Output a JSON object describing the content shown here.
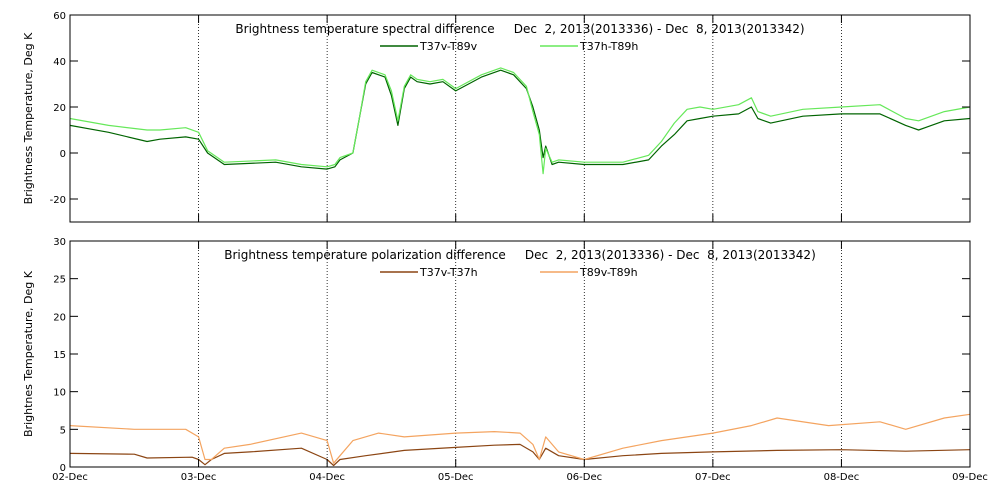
{
  "x_axis": {
    "tick_labels": [
      "02-Dec",
      "03-Dec",
      "04-Dec",
      "05-Dec",
      "06-Dec",
      "07-Dec",
      "08-Dec",
      "09-Dec"
    ],
    "tick_days": [
      0,
      1,
      2,
      3,
      4,
      5,
      6,
      7
    ]
  },
  "chart_data": [
    {
      "type": "line",
      "title": "Brightness temperature spectral difference     Dec  2, 2013(2013336) - Dec  8, 2013(2013342)",
      "ylabel": "Brightness Temperature, Deg K",
      "xlabel": "",
      "x_unit": "days since 02-Dec 2013",
      "ylim": [
        -30,
        60
      ],
      "yticks": [
        -20,
        0,
        20,
        40,
        60
      ],
      "grid": true,
      "legend_position": "top-center",
      "series": [
        {
          "name": "T37v-T89v",
          "color": "#006400",
          "x": [
            0,
            0.3,
            0.6,
            0.7,
            0.9,
            1.0,
            1.07,
            1.2,
            1.6,
            1.8,
            2.0,
            2.06,
            2.1,
            2.2,
            2.25,
            2.3,
            2.35,
            2.45,
            2.5,
            2.55,
            2.6,
            2.65,
            2.7,
            2.8,
            2.9,
            3.0,
            3.2,
            3.35,
            3.45,
            3.55,
            3.6,
            3.65,
            3.68,
            3.7,
            3.75,
            3.8,
            4.0,
            4.3,
            4.5,
            4.6,
            4.7,
            4.8,
            4.9,
            5.0,
            5.2,
            5.3,
            5.35,
            5.45,
            5.7,
            6.0,
            6.3,
            6.5,
            6.6,
            6.8,
            7.0
          ],
          "values": [
            12,
            9,
            5,
            6,
            7,
            6,
            0,
            -5,
            -4,
            -6,
            -7,
            -6,
            -3,
            0,
            15,
            30,
            35,
            33,
            25,
            12,
            28,
            33,
            31,
            30,
            31,
            27,
            33,
            36,
            34,
            28,
            20,
            10,
            -2,
            3,
            -5,
            -4,
            -5,
            -5,
            -3,
            3,
            8,
            14,
            15,
            16,
            17,
            20,
            15,
            13,
            16,
            17,
            17,
            12,
            10,
            14,
            15
          ]
        },
        {
          "name": "T37h-T89h",
          "color": "#66e85a",
          "x": [
            0,
            0.3,
            0.6,
            0.7,
            0.9,
            1.0,
            1.07,
            1.2,
            1.6,
            1.8,
            2.0,
            2.06,
            2.1,
            2.2,
            2.25,
            2.3,
            2.35,
            2.45,
            2.5,
            2.55,
            2.6,
            2.65,
            2.7,
            2.8,
            2.9,
            3.0,
            3.2,
            3.35,
            3.45,
            3.55,
            3.6,
            3.65,
            3.68,
            3.7,
            3.75,
            3.8,
            4.0,
            4.3,
            4.5,
            4.6,
            4.7,
            4.8,
            4.9,
            5.0,
            5.2,
            5.3,
            5.35,
            5.45,
            5.7,
            6.0,
            6.3,
            6.5,
            6.6,
            6.8,
            7.0
          ],
          "values": [
            15,
            12,
            10,
            10,
            11,
            9,
            1,
            -4,
            -3,
            -5,
            -6,
            -5,
            -2,
            0,
            15,
            31,
            36,
            34,
            27,
            14,
            29,
            34,
            32,
            31,
            32,
            28,
            34,
            37,
            35,
            29,
            18,
            8,
            -9,
            2,
            -4,
            -3,
            -4,
            -4,
            -1,
            5,
            13,
            19,
            20,
            19,
            21,
            24,
            18,
            16,
            19,
            20,
            21,
            15,
            14,
            18,
            20
          ]
        }
      ]
    },
    {
      "type": "line",
      "title": "Brightness temperature polarization difference     Dec  2, 2013(2013336) - Dec  8, 2013(2013342)",
      "ylabel": "Brightnes Temperature, Deg K",
      "xlabel": "",
      "x_unit": "days since 02-Dec 2013",
      "ylim": [
        0,
        30
      ],
      "yticks": [
        0,
        5,
        10,
        15,
        20,
        25,
        30
      ],
      "grid": true,
      "legend_position": "top-center",
      "series": [
        {
          "name": "T37v-T37h",
          "color": "#8b4513",
          "x": [
            0,
            0.5,
            0.6,
            0.95,
            1.0,
            1.05,
            1.1,
            1.2,
            1.4,
            1.8,
            2.0,
            2.05,
            2.1,
            2.3,
            2.6,
            3.0,
            3.3,
            3.5,
            3.6,
            3.65,
            3.7,
            3.8,
            4.0,
            4.3,
            4.6,
            5.0,
            5.5,
            6.0,
            6.5,
            7.0
          ],
          "values": [
            1.8,
            1.7,
            1.2,
            1.3,
            1.0,
            0.3,
            1.0,
            1.8,
            2.0,
            2.5,
            1.0,
            0.2,
            1.0,
            1.5,
            2.2,
            2.6,
            2.9,
            3.0,
            2.0,
            1.0,
            2.5,
            1.5,
            1.0,
            1.5,
            1.8,
            2.0,
            2.2,
            2.3,
            2.1,
            2.3
          ]
        },
        {
          "name": "T89v-T89h",
          "color": "#f4a460",
          "x": [
            0,
            0.5,
            0.9,
            1.0,
            1.05,
            1.1,
            1.2,
            1.4,
            1.8,
            2.0,
            2.05,
            2.1,
            2.2,
            2.4,
            2.6,
            3.0,
            3.3,
            3.5,
            3.6,
            3.65,
            3.7,
            3.8,
            4.0,
            4.3,
            4.6,
            5.0,
            5.3,
            5.5,
            5.9,
            6.3,
            6.5,
            6.8,
            7.0
          ],
          "values": [
            5.5,
            5.0,
            5.0,
            4.0,
            1.0,
            1.0,
            2.5,
            3.0,
            4.5,
            3.5,
            0.5,
            1.5,
            3.5,
            4.5,
            4.0,
            4.5,
            4.7,
            4.5,
            3.0,
            1.0,
            4.0,
            2.0,
            1.0,
            2.5,
            3.5,
            4.5,
            5.5,
            6.5,
            5.5,
            6.0,
            5.0,
            6.5,
            7.0
          ]
        }
      ]
    }
  ]
}
